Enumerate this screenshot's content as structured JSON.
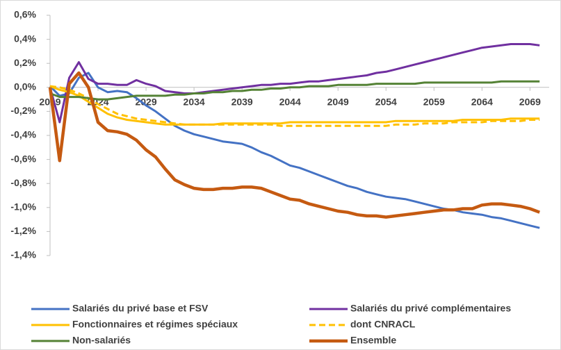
{
  "chart_data": {
    "type": "line",
    "x": [
      2019,
      2020,
      2021,
      2022,
      2023,
      2024,
      2025,
      2026,
      2027,
      2028,
      2029,
      2030,
      2031,
      2032,
      2033,
      2034,
      2035,
      2036,
      2037,
      2038,
      2039,
      2040,
      2041,
      2042,
      2043,
      2044,
      2045,
      2046,
      2047,
      2048,
      2049,
      2050,
      2051,
      2052,
      2053,
      2054,
      2055,
      2056,
      2057,
      2058,
      2059,
      2060,
      2061,
      2062,
      2063,
      2064,
      2065,
      2066,
      2067,
      2068,
      2069,
      2070
    ],
    "xlim": [
      2019,
      2071
    ],
    "xticks": [
      2019,
      2024,
      2029,
      2034,
      2039,
      2044,
      2049,
      2054,
      2059,
      2064,
      2069
    ],
    "ylim": [
      -1.4,
      0.6
    ],
    "yticks": [
      {
        "value": 0.6,
        "label": "0,6%"
      },
      {
        "value": 0.4,
        "label": "0,4%"
      },
      {
        "value": 0.2,
        "label": "0,2%"
      },
      {
        "value": 0,
        "label": "0,0%"
      },
      {
        "value": -0.2,
        "label": "-0,2%"
      },
      {
        "value": -0.4,
        "label": "-0,4%"
      },
      {
        "value": -0.6,
        "label": "-0,6%"
      },
      {
        "value": -0.8,
        "label": "-0,8%"
      },
      {
        "value": -1.0,
        "label": "-1,0%"
      },
      {
        "value": -1.2,
        "label": "-1,2%"
      },
      {
        "value": -1.4,
        "label": "-1,4%"
      }
    ],
    "xaxis_at": 0,
    "grid": false,
    "legend": "bottom",
    "series": [
      {
        "name": "Salariés du privé base et FSV",
        "color": "#4472c4",
        "values": [
          0.01,
          -0.07,
          -0.05,
          0.08,
          0.12,
          0.0,
          -0.04,
          -0.03,
          -0.04,
          -0.09,
          -0.15,
          -0.2,
          -0.26,
          -0.32,
          -0.36,
          -0.39,
          -0.41,
          -0.43,
          -0.45,
          -0.46,
          -0.47,
          -0.5,
          -0.54,
          -0.57,
          -0.61,
          -0.65,
          -0.67,
          -0.7,
          -0.73,
          -0.76,
          -0.79,
          -0.82,
          -0.84,
          -0.87,
          -0.89,
          -0.91,
          -0.92,
          -0.93,
          -0.95,
          -0.97,
          -0.99,
          -1.01,
          -1.02,
          -1.04,
          -1.05,
          -1.06,
          -1.08,
          -1.09,
          -1.11,
          -1.13,
          -1.15,
          -1.17
        ]
      },
      {
        "name": "Salariés du privé complémentaires",
        "color": "#7030a0",
        "values": [
          0.0,
          -0.29,
          0.08,
          0.21,
          0.07,
          0.03,
          0.03,
          0.02,
          0.02,
          0.06,
          0.03,
          0.01,
          -0.03,
          -0.04,
          -0.05,
          -0.05,
          -0.04,
          -0.03,
          -0.02,
          -0.01,
          0.0,
          0.01,
          0.02,
          0.02,
          0.03,
          0.03,
          0.04,
          0.05,
          0.05,
          0.06,
          0.07,
          0.08,
          0.09,
          0.1,
          0.12,
          0.13,
          0.15,
          0.17,
          0.19,
          0.21,
          0.23,
          0.25,
          0.27,
          0.29,
          0.31,
          0.33,
          0.34,
          0.35,
          0.36,
          0.36,
          0.36,
          0.35
        ]
      },
      {
        "name": "Fonctionnaires et régimes spéciaux",
        "color": "#ffc000",
        "values": [
          0.01,
          -0.02,
          -0.04,
          -0.07,
          -0.12,
          -0.17,
          -0.22,
          -0.25,
          -0.27,
          -0.28,
          -0.29,
          -0.3,
          -0.31,
          -0.31,
          -0.31,
          -0.31,
          -0.31,
          -0.31,
          -0.3,
          -0.3,
          -0.3,
          -0.3,
          -0.3,
          -0.3,
          -0.3,
          -0.29,
          -0.29,
          -0.29,
          -0.29,
          -0.29,
          -0.29,
          -0.29,
          -0.29,
          -0.29,
          -0.29,
          -0.29,
          -0.28,
          -0.28,
          -0.28,
          -0.28,
          -0.28,
          -0.28,
          -0.28,
          -0.27,
          -0.27,
          -0.27,
          -0.27,
          -0.27,
          -0.26,
          -0.26,
          -0.26,
          -0.26
        ]
      },
      {
        "name": "dont CNRACL",
        "color": "#ffc000",
        "line_style": "dashed",
        "values": [
          0.01,
          0.0,
          -0.02,
          -0.05,
          -0.09,
          -0.14,
          -0.18,
          -0.22,
          -0.24,
          -0.26,
          -0.27,
          -0.28,
          -0.29,
          -0.3,
          -0.31,
          -0.31,
          -0.31,
          -0.31,
          -0.31,
          -0.31,
          -0.31,
          -0.31,
          -0.31,
          -0.31,
          -0.32,
          -0.32,
          -0.32,
          -0.32,
          -0.32,
          -0.32,
          -0.32,
          -0.32,
          -0.32,
          -0.32,
          -0.32,
          -0.32,
          -0.31,
          -0.31,
          -0.31,
          -0.3,
          -0.3,
          -0.3,
          -0.29,
          -0.29,
          -0.29,
          -0.29,
          -0.28,
          -0.28,
          -0.28,
          -0.28,
          -0.27,
          -0.27
        ]
      },
      {
        "name": "Non-salariés",
        "color": "#548235",
        "values": [
          -0.05,
          -0.08,
          -0.08,
          -0.08,
          -0.09,
          -0.1,
          -0.1,
          -0.09,
          -0.08,
          -0.07,
          -0.07,
          -0.07,
          -0.07,
          -0.06,
          -0.06,
          -0.05,
          -0.05,
          -0.04,
          -0.04,
          -0.03,
          -0.03,
          -0.02,
          -0.02,
          -0.01,
          -0.01,
          0.0,
          0.0,
          0.01,
          0.01,
          0.01,
          0.02,
          0.02,
          0.02,
          0.02,
          0.03,
          0.03,
          0.03,
          0.03,
          0.03,
          0.04,
          0.04,
          0.04,
          0.04,
          0.04,
          0.04,
          0.04,
          0.04,
          0.05,
          0.05,
          0.05,
          0.05,
          0.05
        ]
      },
      {
        "name": "Ensemble",
        "color": "#c55a11",
        "line_weight": "heavy",
        "values": [
          0.0,
          -0.61,
          0.03,
          0.12,
          0.0,
          -0.29,
          -0.36,
          -0.37,
          -0.39,
          -0.44,
          -0.52,
          -0.58,
          -0.68,
          -0.77,
          -0.81,
          -0.84,
          -0.85,
          -0.85,
          -0.84,
          -0.84,
          -0.83,
          -0.83,
          -0.84,
          -0.87,
          -0.9,
          -0.93,
          -0.94,
          -0.97,
          -0.99,
          -1.01,
          -1.03,
          -1.04,
          -1.06,
          -1.07,
          -1.07,
          -1.08,
          -1.07,
          -1.06,
          -1.05,
          -1.04,
          -1.03,
          -1.02,
          -1.02,
          -1.01,
          -1.01,
          -0.98,
          -0.97,
          -0.97,
          -0.98,
          -0.99,
          -1.01,
          -1.04
        ]
      }
    ]
  }
}
